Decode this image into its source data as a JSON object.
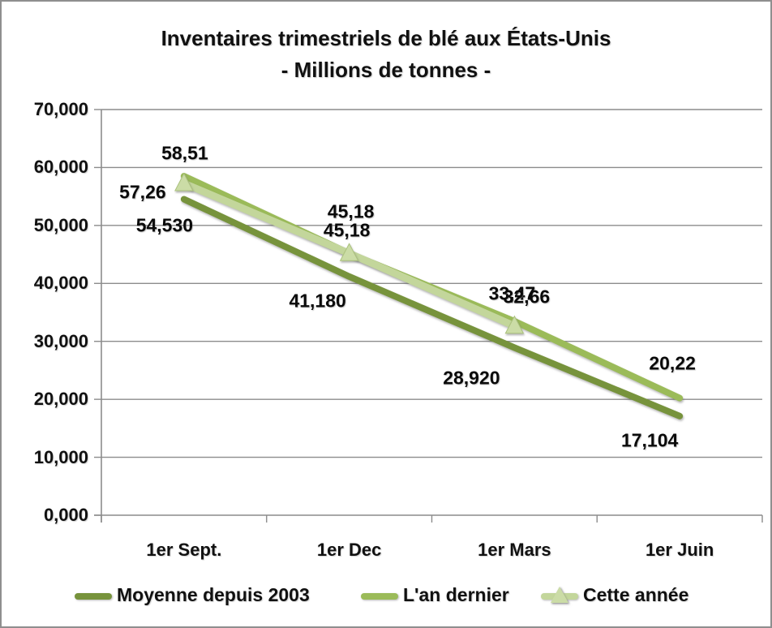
{
  "chart_data": {
    "type": "line",
    "title": "Inventaires trimestriels de blé aux États-Unis",
    "subtitle": "- Millions de tonnes -",
    "categories": [
      "1er Sept.",
      "1er Dec",
      "1er Mars",
      "1er Juin"
    ],
    "y_axis": {
      "min": 0,
      "max": 70,
      "tick_interval": 10,
      "tick_labels": [
        "0,000",
        "10,000",
        "20,000",
        "30,000",
        "40,000",
        "50,000",
        "60,000",
        "70,000"
      ]
    },
    "grid": true,
    "legend_position": "bottom",
    "axis_color": "#8c8c8c",
    "series": [
      {
        "name": "Moyenne depuis 2003",
        "color": "#77933C",
        "marker": "none",
        "values": [
          54.53,
          41.18,
          28.92,
          17.104
        ],
        "labels": [
          "54,530",
          "41,180",
          "28,920",
          "17,104"
        ]
      },
      {
        "name": "L'an dernier",
        "color": "#9BBB59",
        "marker": "none",
        "values": [
          58.51,
          45.18,
          33.47,
          20.22
        ],
        "labels": [
          "58,51",
          "45,18",
          "33,47",
          "20,22"
        ]
      },
      {
        "name": "Cette année",
        "color": "#C3D69B",
        "marker": "triangle",
        "marker_fill": "#CBDCA6",
        "marker_stroke": "#ABC27D",
        "values": [
          57.26,
          45.18,
          32.66
        ],
        "labels": [
          "57,26",
          "45,18",
          "32,66"
        ]
      }
    ]
  }
}
